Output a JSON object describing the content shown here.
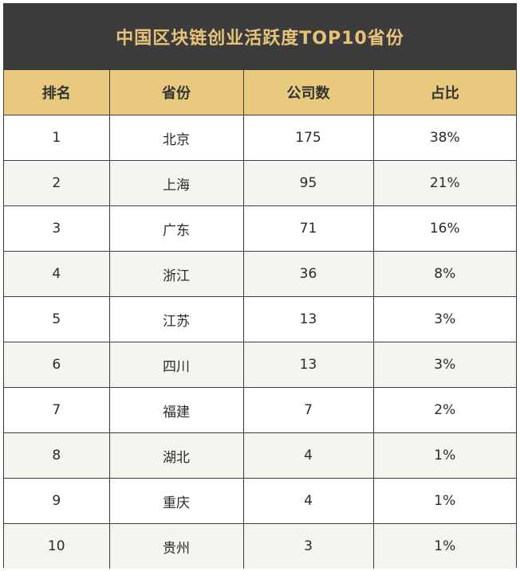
{
  "title": "中国区块链创业活跃度TOP10省份",
  "colors": {
    "title_bg": "#3c3c3c",
    "title_text": "#e7c37a",
    "header_bg": "#e8c97e",
    "row_alt_bg": "#f6f4ee",
    "border": "#3c3c3c"
  },
  "chart_data": {
    "type": "table",
    "title": "中国区块链创业活跃度TOP10省份",
    "columns": [
      "排名",
      "省份",
      "公司数",
      "占比"
    ],
    "rows": [
      [
        "1",
        "北京",
        "175",
        "38%"
      ],
      [
        "2",
        "上海",
        "95",
        "21%"
      ],
      [
        "3",
        "广东",
        "71",
        "16%"
      ],
      [
        "4",
        "浙江",
        "36",
        "8%"
      ],
      [
        "5",
        "江苏",
        "13",
        "3%"
      ],
      [
        "6",
        "四川",
        "13",
        "3%"
      ],
      [
        "7",
        "福建",
        "7",
        "2%"
      ],
      [
        "8",
        "湖北",
        "4",
        "1%"
      ],
      [
        "9",
        "重庆",
        "4",
        "1%"
      ],
      [
        "10",
        "贵州",
        "3",
        "1%"
      ]
    ]
  }
}
